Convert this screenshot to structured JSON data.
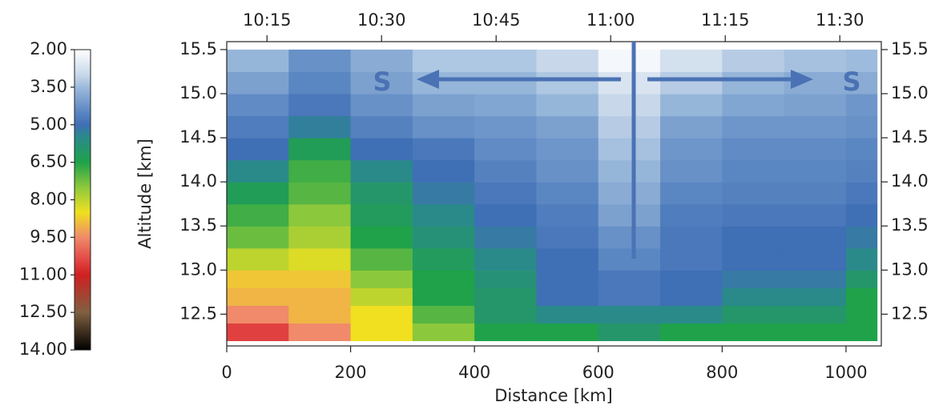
{
  "chart_data": {
    "type": "heatmap",
    "xlabel": "Distance [km]",
    "ylabel": "Altitude [km]",
    "annotations": [
      "S",
      "S"
    ],
    "x_edges": [
      0,
      100,
      200,
      300,
      400,
      500,
      600,
      700,
      800,
      900,
      1000,
      1050
    ],
    "y_edges": [
      12.2,
      12.4,
      12.6,
      12.8,
      13.0,
      13.25,
      13.5,
      13.75,
      14.0,
      14.25,
      14.5,
      14.75,
      15.0,
      15.25,
      15.5
    ],
    "z": [
      [
        10.5,
        9.5,
        8.5,
        7.5,
        6.5,
        6.5,
        6,
        6.5,
        6.5,
        6.5,
        6.5
      ],
      [
        9.5,
        9,
        8.5,
        7,
        6,
        5.5,
        5.5,
        5.5,
        6,
        6,
        6.5
      ],
      [
        9,
        9,
        8,
        6.5,
        6,
        5,
        4.8,
        5,
        5.5,
        5.5,
        6.5
      ],
      [
        8.8,
        8.8,
        7.5,
        6.5,
        5.8,
        5,
        4.8,
        5,
        5.2,
        5.2,
        6
      ],
      [
        8,
        8.3,
        7,
        6.2,
        5.5,
        5,
        4.5,
        4.8,
        5,
        5,
        5.5
      ],
      [
        7.2,
        7.8,
        6.5,
        5.8,
        5.2,
        4.8,
        4.3,
        4.8,
        5,
        5,
        5.2
      ],
      [
        6.8,
        7.5,
        6.2,
        5.5,
        5,
        4.7,
        4,
        4.7,
        4.8,
        4.8,
        5
      ],
      [
        6.3,
        7,
        6,
        5.2,
        4.8,
        4.5,
        3.8,
        4.5,
        4.6,
        4.6,
        4.8
      ],
      [
        5.5,
        6.8,
        5.5,
        5,
        4.6,
        4.3,
        3.6,
        4.3,
        4.5,
        4.5,
        4.6
      ],
      [
        5,
        6.3,
        5,
        4.8,
        4.4,
        4.2,
        3.4,
        4.2,
        4.4,
        4.4,
        4.5
      ],
      [
        4.7,
        5.3,
        4.6,
        4.3,
        4.2,
        4,
        3.2,
        4,
        4.2,
        4.2,
        4.3
      ],
      [
        4.4,
        4.8,
        4.3,
        4,
        3.9,
        3.6,
        3,
        3.6,
        3.9,
        4,
        4.2
      ],
      [
        4,
        4.5,
        4,
        3.6,
        3.6,
        3.3,
        2.7,
        3.2,
        3.6,
        3.8,
        3.8
      ],
      [
        3.6,
        4.3,
        3.8,
        3.3,
        3.3,
        3,
        2.2,
        2.8,
        3.2,
        3.4,
        3.5
      ]
    ],
    "xlim": [
      0,
      1057
    ],
    "ylim": [
      12.14,
      15.59
    ],
    "xticks": [
      0,
      200,
      400,
      600,
      800,
      1000
    ],
    "x2ticks": [
      {
        "value": 65,
        "label": "10:15"
      },
      {
        "value": 250,
        "label": "10:30"
      },
      {
        "value": 435,
        "label": "10:45"
      },
      {
        "value": 620,
        "label": "11:00"
      },
      {
        "value": 805,
        "label": "11:15"
      },
      {
        "value": 990,
        "label": "11:30"
      }
    ],
    "yticks": [
      12.5,
      {
        "value": 13,
        "label": "13.0"
      },
      13.5,
      {
        "value": 14,
        "label": "14.0"
      },
      14.5,
      {
        "value": 15,
        "label": "15.0"
      },
      15.5
    ],
    "colorbar": {
      "lim": [
        2,
        14
      ],
      "ticks": [
        {
          "value": 2,
          "label": "2.00"
        },
        {
          "value": 3.5,
          "label": "3.50"
        },
        {
          "value": 5,
          "label": "5.00"
        },
        {
          "value": 6.5,
          "label": "6.50"
        },
        {
          "value": 8,
          "label": "8.00"
        },
        {
          "value": 9.5,
          "label": "9.50"
        },
        {
          "value": 11,
          "label": "11.00"
        },
        {
          "value": 12.5,
          "label": "12.50"
        },
        {
          "value": 14,
          "label": "14.00"
        }
      ]
    },
    "colorscale": [
      [
        2,
        "#ffffff"
      ],
      [
        3,
        "#c8d8ea"
      ],
      [
        3.5,
        "#9dbbdc"
      ],
      [
        4.5,
        "#5a86c2"
      ],
      [
        5,
        "#3f6fb5"
      ],
      [
        5.5,
        "#2a8a8a"
      ],
      [
        6.5,
        "#1fa24a"
      ],
      [
        7.5,
        "#8cc83c"
      ],
      [
        8.5,
        "#f0e020"
      ],
      [
        9.5,
        "#f08a6a"
      ],
      [
        10.5,
        "#e04040"
      ],
      [
        11,
        "#d02020"
      ],
      [
        12.5,
        "#806040"
      ],
      [
        14,
        "#000000"
      ]
    ]
  }
}
